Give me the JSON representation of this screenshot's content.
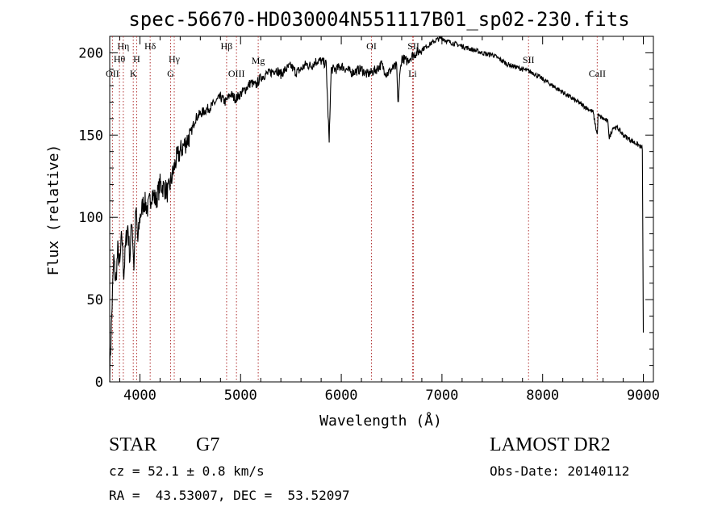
{
  "title": "spec-56670-HD030004N551117B01_sp02-230.fits",
  "footer": {
    "class_label": "STAR",
    "subclass": "G7",
    "survey": "LAMOST DR2",
    "cz_line": "cz = 52.1 ± 0.8 km/s",
    "obs_date_line": "Obs-Date: 20140112",
    "coords_line": "RA =  43.53007, DEC =  53.52097"
  },
  "chart_data": {
    "type": "line",
    "title": "spec-56670-HD030004N551117B01_sp02-230.fits",
    "xlabel": "Wavelength (Å)",
    "ylabel": "Flux (relative)",
    "xlim": [
      3700,
      9100
    ],
    "ylim": [
      0,
      210
    ],
    "x_ticks": [
      4000,
      5000,
      6000,
      7000,
      8000,
      9000
    ],
    "x_minor_step": 200,
    "y_ticks": [
      0,
      50,
      100,
      150,
      200
    ],
    "y_minor_step": 10,
    "grid": false,
    "line_color": "#000000",
    "marker_color": "#b03030",
    "series": [
      {
        "x": [
          3700,
          3720,
          3740,
          3760,
          3780,
          3800,
          3820,
          3840,
          3860,
          3880,
          3900,
          3920,
          3940,
          3960,
          3980,
          4000,
          4040,
          4080,
          4120,
          4160,
          4200,
          4240,
          4280,
          4320,
          4360,
          4400,
          4450,
          4500,
          4550,
          4600,
          4650,
          4700,
          4750,
          4800,
          4850,
          4900,
          4950,
          5000,
          5050,
          5100,
          5150,
          5200,
          5250,
          5300,
          5350,
          5400,
          5450,
          5500,
          5550,
          5600,
          5650,
          5700,
          5750,
          5800,
          5850,
          5880,
          5890,
          5900,
          5950,
          6000,
          6050,
          6100,
          6150,
          6200,
          6250,
          6300,
          6350,
          6400,
          6450,
          6500,
          6550,
          6563,
          6580,
          6600,
          6650,
          6700,
          6750,
          6800,
          6850,
          6900,
          6950,
          7000,
          7050,
          7100,
          7150,
          7200,
          7250,
          7300,
          7350,
          7400,
          7450,
          7500,
          7550,
          7600,
          7650,
          7700,
          7750,
          7800,
          7850,
          7900,
          7950,
          8000,
          8050,
          8100,
          8150,
          8200,
          8250,
          8300,
          8350,
          8400,
          8450,
          8500,
          8542,
          8550,
          8600,
          8650,
          8662,
          8700,
          8750,
          8800,
          8850,
          8900,
          8950,
          8990,
          9000
        ],
        "y": [
          5,
          40,
          75,
          60,
          80,
          70,
          90,
          65,
          85,
          95,
          75,
          100,
          70,
          105,
          85,
          100,
          110,
          105,
          115,
          110,
          120,
          118,
          115,
          125,
          135,
          140,
          145,
          150,
          160,
          163,
          165,
          167,
          170,
          173,
          170,
          175,
          172,
          175,
          178,
          182,
          180,
          185,
          187,
          188,
          190,
          187,
          190,
          192,
          188,
          190,
          193,
          192,
          195,
          195,
          193,
          145,
          170,
          190,
          190,
          192,
          190,
          188,
          189,
          190,
          187,
          188,
          190,
          193,
          187,
          190,
          192,
          168,
          185,
          197,
          195,
          198,
          200,
          202,
          204,
          206,
          208,
          209,
          207,
          206,
          205,
          204,
          203,
          202,
          201,
          200,
          199,
          199,
          197,
          195,
          193,
          192,
          191,
          190,
          189,
          188,
          186,
          184,
          182,
          180,
          178,
          176,
          174,
          172,
          170,
          168,
          166,
          164,
          150,
          162,
          160,
          158,
          148,
          155,
          154,
          150,
          148,
          146,
          144,
          142,
          30
        ]
      }
    ],
    "line_markers_top": [
      {
        "label": "Hη",
        "x": 3835
      },
      {
        "label": "Hθ",
        "x": 3797
      },
      {
        "label": "Hδ",
        "x": 4102
      },
      {
        "label": "H",
        "x": 3968
      },
      {
        "label": "Hγ",
        "x": 4341
      },
      {
        "label": "Hβ",
        "x": 4861
      },
      {
        "label": "Mg",
        "x": 5175
      },
      {
        "label": "OI",
        "x": 6300
      },
      {
        "label": "SII",
        "x": 6717
      },
      {
        "label": "SII",
        "x": 7860
      }
    ],
    "line_markers_low": [
      {
        "label": "OII",
        "x": 3727
      },
      {
        "label": "K",
        "x": 3934
      },
      {
        "label": "G",
        "x": 4305
      },
      {
        "label": "OIII",
        "x": 4959
      },
      {
        "label": "Li",
        "x": 6708
      },
      {
        "label": "CaII",
        "x": 8542
      }
    ]
  }
}
